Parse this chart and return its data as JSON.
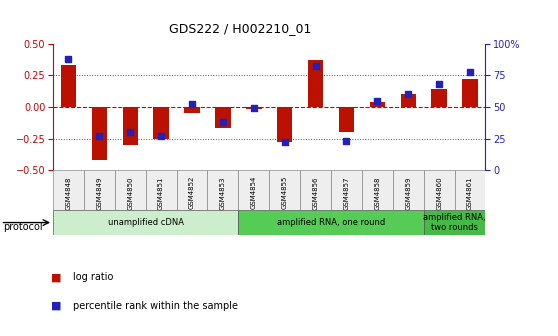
{
  "title": "GDS222 / H002210_01",
  "samples": [
    "GSM4848",
    "GSM4849",
    "GSM4850",
    "GSM4851",
    "GSM4852",
    "GSM4853",
    "GSM4854",
    "GSM4855",
    "GSM4856",
    "GSM4857",
    "GSM4858",
    "GSM4859",
    "GSM4860",
    "GSM4861"
  ],
  "log_ratio": [
    0.33,
    -0.42,
    -0.3,
    -0.25,
    -0.05,
    -0.17,
    -0.02,
    -0.28,
    0.37,
    -0.2,
    0.04,
    0.1,
    0.14,
    0.22
  ],
  "percentile_rank": [
    88,
    27,
    30,
    27,
    52,
    38,
    49,
    22,
    82,
    23,
    55,
    60,
    68,
    78
  ],
  "ylim_left": [
    -0.5,
    0.5
  ],
  "ylim_right": [
    0,
    100
  ],
  "yticks_left": [
    -0.5,
    -0.25,
    0,
    0.25,
    0.5
  ],
  "yticks_right": [
    0,
    25,
    50,
    75,
    100
  ],
  "bar_color": "#bb1100",
  "dot_color": "#2222bb",
  "zero_line_color": "#cc0000",
  "bg_color": "#ffffff",
  "protocol_groups": [
    {
      "label": "unamplified cDNA",
      "start": 0,
      "end": 5,
      "color": "#cceecc"
    },
    {
      "label": "amplified RNA, one round",
      "start": 6,
      "end": 11,
      "color": "#55cc55"
    },
    {
      "label": "amplified RNA,\ntwo rounds",
      "start": 12,
      "end": 13,
      "color": "#44bb44"
    }
  ],
  "protocol_label": "protocol",
  "legend_items": [
    {
      "label": "log ratio",
      "color": "#bb1100"
    },
    {
      "label": "percentile rank within the sample",
      "color": "#2222bb"
    }
  ]
}
